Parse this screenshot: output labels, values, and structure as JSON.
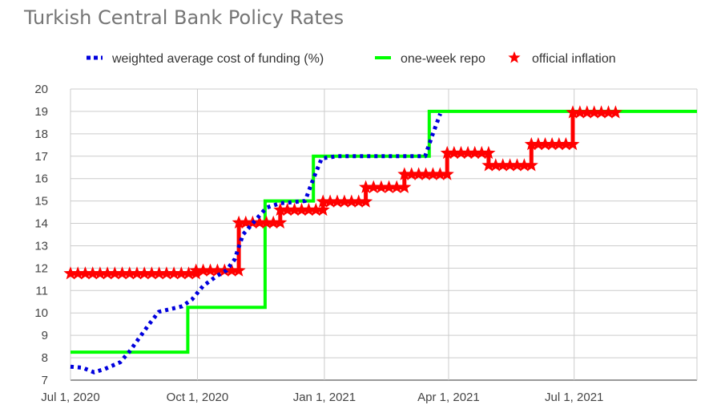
{
  "chart_data": {
    "type": "line",
    "title": "Turkish Central Bank Policy Rates",
    "xlabel": "",
    "ylabel": "",
    "ylim": [
      7,
      20
    ],
    "yticks": [
      "20",
      "19",
      "18",
      "17",
      "16",
      "15",
      "14",
      "13",
      "12",
      "11",
      "10",
      "9",
      "8",
      "7"
    ],
    "xlim": [
      "2020-07-01",
      "2021-09-28"
    ],
    "xticks": [
      {
        "date": "2020-07-01",
        "label": "Jul 1, 2020"
      },
      {
        "date": "2020-10-01",
        "label": "Oct 1, 2020"
      },
      {
        "date": "2021-01-01",
        "label": "Jan 1, 2021"
      },
      {
        "date": "2021-04-01",
        "label": "Apr 1, 2021"
      },
      {
        "date": "2021-07-01",
        "label": "Jul 1, 2021"
      }
    ],
    "grid": true,
    "legend_position": "top",
    "series": [
      {
        "name": "weighted average cost of funding (%)",
        "color": "#0000dd",
        "style": "dotted",
        "points": [
          [
            "2020-07-01",
            7.6
          ],
          [
            "2020-07-10",
            7.55
          ],
          [
            "2020-07-18",
            7.35
          ],
          [
            "2020-07-26",
            7.5
          ],
          [
            "2020-08-06",
            7.8
          ],
          [
            "2020-08-13",
            8.3
          ],
          [
            "2020-08-20",
            8.9
          ],
          [
            "2020-08-27",
            9.5
          ],
          [
            "2020-09-03",
            10.05
          ],
          [
            "2020-09-10",
            10.15
          ],
          [
            "2020-09-20",
            10.3
          ],
          [
            "2020-09-27",
            10.6
          ],
          [
            "2020-10-05",
            11.2
          ],
          [
            "2020-10-15",
            11.65
          ],
          [
            "2020-10-22",
            11.9
          ],
          [
            "2020-10-28",
            12.4
          ],
          [
            "2020-11-03",
            13.5
          ],
          [
            "2020-11-10",
            14.0
          ],
          [
            "2020-11-20",
            14.7
          ],
          [
            "2020-11-30",
            14.9
          ],
          [
            "2020-12-10",
            14.95
          ],
          [
            "2020-12-18",
            15.0
          ],
          [
            "2020-12-24",
            16.0
          ],
          [
            "2020-12-30",
            16.9
          ],
          [
            "2021-01-10",
            17.0
          ],
          [
            "2021-03-15",
            17.0
          ],
          [
            "2021-03-20",
            17.9
          ],
          [
            "2021-03-26",
            18.9
          ]
        ]
      },
      {
        "name": "one-week repo",
        "color": "#00ff00",
        "style": "step",
        "points": [
          [
            "2020-07-01",
            8.25
          ],
          [
            "2020-09-24",
            8.25
          ],
          [
            "2020-09-24",
            10.25
          ],
          [
            "2020-11-19",
            10.25
          ],
          [
            "2020-11-19",
            15.0
          ],
          [
            "2020-12-24",
            15.0
          ],
          [
            "2020-12-24",
            17.0
          ],
          [
            "2021-03-18",
            17.0
          ],
          [
            "2021-03-18",
            19.0
          ],
          [
            "2021-09-28",
            19.0
          ]
        ]
      },
      {
        "name": "official inflation",
        "color": "#ff0000",
        "style": "step-star",
        "points": [
          [
            "2020-07-01",
            11.76
          ],
          [
            "2020-09-30",
            11.76
          ],
          [
            "2020-09-30",
            11.89
          ],
          [
            "2020-10-31",
            11.89
          ],
          [
            "2020-10-31",
            14.03
          ],
          [
            "2020-11-30",
            14.03
          ],
          [
            "2020-11-30",
            14.6
          ],
          [
            "2020-12-31",
            14.6
          ],
          [
            "2020-12-31",
            14.97
          ],
          [
            "2021-01-31",
            14.97
          ],
          [
            "2021-01-31",
            15.61
          ],
          [
            "2021-02-28",
            15.61
          ],
          [
            "2021-02-28",
            16.19
          ],
          [
            "2021-03-31",
            16.19
          ],
          [
            "2021-03-31",
            17.14
          ],
          [
            "2021-04-30",
            17.14
          ],
          [
            "2021-04-30",
            16.59
          ],
          [
            "2021-05-31",
            16.59
          ],
          [
            "2021-05-31",
            17.53
          ],
          [
            "2021-06-30",
            17.53
          ],
          [
            "2021-06-30",
            18.95
          ],
          [
            "2021-07-31",
            18.95
          ]
        ]
      }
    ]
  }
}
